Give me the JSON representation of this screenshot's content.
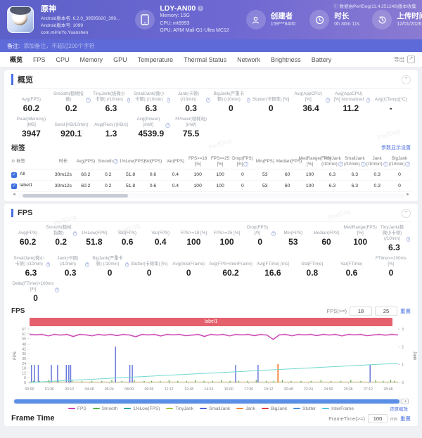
{
  "header": {
    "app": {
      "name": "原神",
      "line1": "Android版本名: 6.2.0_39595820_399...",
      "line2": "Android版本号: 1099",
      "line3": "com.miHoYo.Yuanshen"
    },
    "device": {
      "name": "LDY-AN00",
      "memory": "Memory: 15G",
      "cpu": "CPU: mt6993",
      "gpu": "GPU: ARM Mali-G1-Ultra MC12"
    },
    "creator": {
      "label": "创建者",
      "value": "159***6400"
    },
    "duration": {
      "label": "时长",
      "value": "0h 30m 11s"
    },
    "upload": {
      "label": "上传时间",
      "value": "12/01/2026 18:42:30"
    },
    "source_note": "① 数据由PerfDog(11.4.251248)版本收集"
  },
  "note_bar": {
    "label": "备注:",
    "placeholder": "添加备注，不超过200个字符"
  },
  "tabs": [
    "概览",
    "FPS",
    "CPU",
    "Memory",
    "GPU",
    "Temperature",
    "Thermal Status",
    "Network",
    "Brightness",
    "Battery"
  ],
  "tabs_active_index": 0,
  "export_label": "导出",
  "overview": {
    "title": "概览",
    "row1": [
      {
        "label": "Avg(FPS)",
        "value": "60.2",
        "info": false
      },
      {
        "label": "Smooth(稳帧指数)",
        "value": "0.2",
        "info": true
      },
      {
        "label": "TinyJank(极微小卡顿) (/10min)",
        "value": "6.3",
        "info": true
      },
      {
        "label": "SmallJank(微小卡顿) (/10min)",
        "value": "6.3",
        "info": true
      },
      {
        "label": "Jank(卡顿) (/10min)",
        "value": "0.3",
        "info": true
      },
      {
        "label": "BigJank(严重卡顿) (/10min)",
        "value": "0",
        "info": true
      },
      {
        "label": "Stutter(卡顿率) [%]",
        "value": "0",
        "info": false
      },
      {
        "label": "Avg(AppCPU) [%]",
        "value": "36.4",
        "info": true
      },
      {
        "label": "Avg(AppCPU) [%] Normalized",
        "value": "11.2",
        "info": true
      },
      {
        "label": "Avg(CTemp)[°C]",
        "value": "-",
        "info": false
      }
    ],
    "row2": [
      {
        "label": "Peak(Memory) [MB]",
        "value": "3947",
        "info": false
      },
      {
        "label": "Send [KB/10min]",
        "value": "920.1",
        "info": false
      },
      {
        "label": "Avg(Recv) [KB/s]",
        "value": "1.3",
        "info": false
      },
      {
        "label": "Avg(Power) [mW]",
        "value": "4539.9",
        "info": true
      },
      {
        "label": "FPower(帧耗电) [mW]",
        "value": "75.5",
        "info": false
      }
    ]
  },
  "labels_table": {
    "title": "标签",
    "settings_link": "参数显示设置",
    "name_col": "标签",
    "columns": [
      {
        "label": "时长",
        "info": false
      },
      {
        "label": "Avg(FPS)",
        "info": false
      },
      {
        "label": "Smooth",
        "info": true
      },
      {
        "label": "1%Low(FPS)",
        "info": false
      },
      {
        "label": "Std(FPS)",
        "info": false
      },
      {
        "label": "Var(FPS)",
        "info": false
      },
      {
        "label": "FPS>=18 [%]",
        "info": false
      },
      {
        "label": "FPS>=25 [%]",
        "info": false
      },
      {
        "label": "Drop(FPS) [/h]",
        "info": true
      },
      {
        "label": "Min(FPS)",
        "info": false
      },
      {
        "label": "Median(FPS)",
        "info": false
      },
      {
        "label": "MedRange(FPS)[%]",
        "info": false
      },
      {
        "label": "TinyJank (/10min)",
        "info": true
      },
      {
        "label": "SmallJank (/10min)",
        "info": true
      },
      {
        "label": "Jank (/10min)",
        "info": true
      },
      {
        "label": "BigJank (/10min)",
        "info": true
      }
    ],
    "rows": [
      {
        "name": "All",
        "checked": true,
        "values": [
          "30m12s",
          "60.2",
          "0.2",
          "51.8",
          "0.6",
          "0.4",
          "100",
          "100",
          "0",
          "53",
          "60",
          "100",
          "6.3",
          "6.3",
          "0.3",
          "0"
        ]
      },
      {
        "name": "label1",
        "checked": true,
        "values": [
          "30m12s",
          "60.2",
          "0.2",
          "51.8",
          "0.6",
          "0.4",
          "100",
          "100",
          "0",
          "53",
          "60",
          "100",
          "6.3",
          "6.3",
          "0.3",
          "0"
        ]
      }
    ]
  },
  "fps_section": {
    "title": "FPS",
    "row1": [
      {
        "label": "Avg(FPS)",
        "value": "60.2",
        "info": false
      },
      {
        "label": "Smooth(稳帧指数)",
        "value": "0.2",
        "info": true
      },
      {
        "label": "1%Low(FPS)",
        "value": "51.8",
        "info": false
      },
      {
        "label": "Std(FPS)",
        "value": "0.6",
        "info": false
      },
      {
        "label": "Var(FPS)",
        "value": "0.4",
        "info": false
      },
      {
        "label": "FPS>=18 [%]",
        "value": "100",
        "info": false
      },
      {
        "label": "FPS>=25 [%]",
        "value": "100",
        "info": false
      },
      {
        "label": "Drop(FPS) [/h]",
        "value": "0",
        "info": true
      },
      {
        "label": "Min(FPS)",
        "value": "53",
        "info": false
      },
      {
        "label": "Median(FPS)",
        "value": "60",
        "info": false
      },
      {
        "label": "MedRange(FPS)[%]",
        "value": "100",
        "info": false
      },
      {
        "label": "TinyJank(极微小卡顿) (/10min)",
        "value": "6.3",
        "info": true
      }
    ],
    "row2": [
      {
        "label": "SmallJank(微小卡顿) (/10min)",
        "value": "6.3",
        "info": true
      },
      {
        "label": "Jank(卡顿) (/10min)",
        "value": "0.3",
        "info": true
      },
      {
        "label": "BigJank(严重卡顿) (/10min)",
        "value": "0",
        "info": true
      },
      {
        "label": "Stutter(卡顿率) [%]",
        "value": "0",
        "info": false
      },
      {
        "label": "Avg(InterFrame)",
        "value": "0",
        "info": false
      },
      {
        "label": "Avg(FPS+InterFrame)",
        "value": "60.2",
        "info": false
      },
      {
        "label": "Avg(FTime) [ms]",
        "value": "16.6",
        "info": false
      },
      {
        "label": "Std(FTime)",
        "value": "0.8",
        "info": false
      },
      {
        "label": "Var(FTime)",
        "value": "0.6",
        "info": false
      },
      {
        "label": "FTime>=100ms [%]",
        "value": "0",
        "info": false
      }
    ],
    "row3": [
      {
        "label": "Delta(FTime)>100ms [/h]",
        "value": "0",
        "info": true
      }
    ]
  },
  "chart_data": {
    "type": "line",
    "title": "FPS",
    "label_band": "label1",
    "fps_filter": {
      "label": "FPS(>=)",
      "v1": "18",
      "v2": "25",
      "reset": "重置"
    },
    "x": {
      "labels": [
        "00:00",
        "01:36",
        "03:12",
        "04:48",
        "06:24",
        "08:00",
        "09:36",
        "11:12",
        "12:48",
        "14:24",
        "16:00",
        "17:36",
        "19:12",
        "20:48",
        "22:24",
        "24:00",
        "25:36",
        "27:12",
        "28:48"
      ],
      "step_minutes": 1.6,
      "range_minutes": [
        0,
        29.6
      ]
    },
    "y_left": {
      "label": "FPS",
      "ticks": [
        0,
        6,
        12,
        18,
        24,
        30,
        36,
        42,
        48,
        55,
        61,
        67
      ],
      "max": 67
    },
    "y_right": {
      "label": "Jank",
      "ticks": [
        0,
        1,
        2,
        3
      ],
      "max": 3
    },
    "fps_series": {
      "name": "FPS",
      "color": "#c83cb0",
      "values": [
        60,
        59.6,
        60,
        58.2,
        60,
        59.2,
        60,
        57.5,
        60,
        59.5,
        58.3,
        60,
        59.1,
        60,
        58.6,
        60,
        59.3,
        57.2,
        60,
        59.4,
        60,
        58.1,
        60,
        59.5,
        60,
        58.4,
        59.2,
        60,
        57.6,
        60,
        59.3,
        60,
        58.2,
        60,
        59.4,
        60,
        58.5,
        60,
        59.2,
        53.8,
        59.5,
        60,
        58.3,
        60,
        59.4,
        60,
        58.6,
        60,
        59.3,
        60,
        58.2,
        60,
        59.5,
        60,
        58.4,
        59.3,
        60,
        59.1,
        60,
        59.4
      ]
    },
    "small_jank_spikes": {
      "name": "SmallJank",
      "color": "#4f5fd4",
      "points": [
        [
          0.15,
          22
        ],
        [
          0.4,
          22
        ],
        [
          0.7,
          22
        ],
        [
          1.75,
          22
        ],
        [
          2.25,
          22
        ],
        [
          2.95,
          22
        ],
        [
          3.15,
          22
        ],
        [
          3.3,
          22
        ],
        [
          6.9,
          45
        ],
        [
          8.05,
          22
        ],
        [
          8.25,
          22
        ],
        [
          16.55,
          22
        ],
        [
          18.35,
          22
        ],
        [
          27.35,
          22
        ]
      ]
    },
    "jank_spikes": {
      "name": "Jank",
      "color": "#f08030",
      "points": [
        [
          19.95,
          23
        ]
      ]
    },
    "tiny_jank_bars": {
      "name": "TinyJank",
      "color": "#55a944",
      "points": [
        [
          0.3,
          2
        ],
        [
          0.8,
          2
        ],
        [
          1.5,
          3
        ],
        [
          2.3,
          2
        ],
        [
          3.4,
          3
        ],
        [
          4.2,
          2
        ],
        [
          5.0,
          2
        ],
        [
          5.8,
          2
        ],
        [
          6.6,
          3
        ],
        [
          7.4,
          2
        ],
        [
          8.4,
          3
        ],
        [
          9.2,
          2
        ],
        [
          9.8,
          2
        ],
        [
          10.5,
          2
        ],
        [
          11.2,
          3
        ],
        [
          11.9,
          2
        ],
        [
          12.6,
          2
        ],
        [
          13.3,
          3
        ],
        [
          14.0,
          2
        ],
        [
          14.7,
          2
        ],
        [
          15.4,
          3
        ],
        [
          16.1,
          2
        ],
        [
          16.8,
          2
        ],
        [
          17.5,
          2
        ],
        [
          18.2,
          3
        ],
        [
          19.0,
          2
        ],
        [
          19.6,
          2
        ],
        [
          20.3,
          3
        ],
        [
          21.0,
          2
        ],
        [
          21.8,
          2
        ],
        [
          22.6,
          2
        ],
        [
          23.4,
          3
        ],
        [
          24.2,
          2
        ],
        [
          25.0,
          2
        ],
        [
          25.8,
          3
        ],
        [
          26.6,
          2
        ],
        [
          27.8,
          3
        ],
        [
          28.4,
          2
        ],
        [
          29.0,
          3
        ],
        [
          29.3,
          2
        ]
      ]
    },
    "stutter_line": {
      "name": "Stutter",
      "color": "#72d8ce",
      "points_left_axis": [
        [
          0,
          0
        ],
        [
          29.6,
          24
        ]
      ]
    },
    "baseline": {
      "color": "#c8b273",
      "value": 0.6
    },
    "legend": [
      {
        "name": "FPS",
        "color": "#c83cb0"
      },
      {
        "name": "Smooth",
        "color": "#58b843"
      },
      {
        "name": "1%Low(FPS)",
        "color": "#2aa79b"
      },
      {
        "name": "TinyJank",
        "color": "#a2c53a"
      },
      {
        "name": "SmallJank",
        "color": "#4f5fd4"
      },
      {
        "name": "Jank",
        "color": "#f08030"
      },
      {
        "name": "BigJank",
        "color": "#e23c3c"
      },
      {
        "name": "Stutter",
        "color": "#4a90d9"
      },
      {
        "name": "InterFrame",
        "color": "#52c8e0"
      }
    ],
    "zoom_reset_link": "还原缩放"
  },
  "frame_time": {
    "title": "Frame Time",
    "filter_label": "FrameTime(>=)",
    "filter_value": "100",
    "unit": "ms",
    "reset_label": "重置"
  }
}
